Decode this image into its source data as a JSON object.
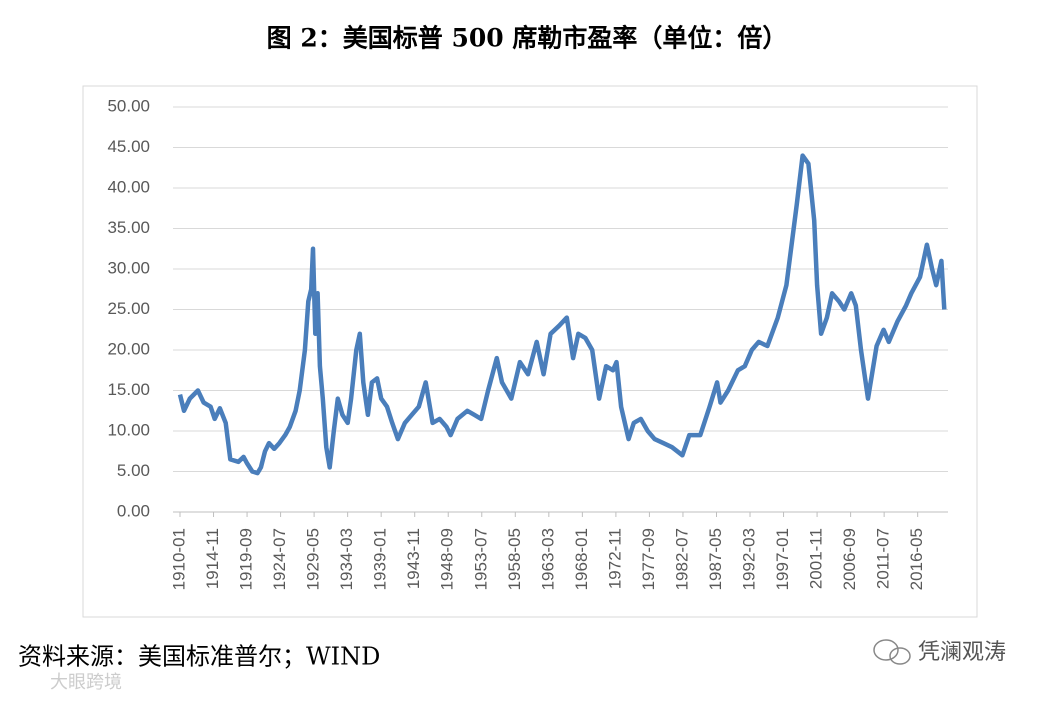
{
  "chart_data": {
    "type": "line",
    "title": "图 2：美国标普 500 席勒市盈率（单位：倍）",
    "x": [
      "1910-01",
      "1910-08",
      "1911-06",
      "1912-08",
      "1913-06",
      "1914-06",
      "1915-01",
      "1915-10",
      "1916-08",
      "1917-04",
      "1918-06",
      "1919-03",
      "1919-09",
      "1920-06",
      "1921-03",
      "1921-09",
      "1922-04",
      "1922-11",
      "1923-08",
      "1924-05",
      "1925-03",
      "1925-11",
      "1926-09",
      "1927-04",
      "1928-01",
      "1928-07",
      "1928-12",
      "1929-03",
      "1929-07",
      "1929-11",
      "1930-03",
      "1930-08",
      "1931-02",
      "1931-08",
      "1932-03",
      "1932-10",
      "1933-06",
      "1934-03",
      "1934-09",
      "1935-06",
      "1935-12",
      "1936-06",
      "1937-02",
      "1937-09",
      "1938-06",
      "1939-01",
      "1939-11",
      "1940-08",
      "1941-06",
      "1942-06",
      "1943-06",
      "1944-06",
      "1945-06",
      "1946-06",
      "1947-06",
      "1948-06",
      "1949-01",
      "1950-01",
      "1951-06",
      "1952-06",
      "1953-06",
      "1954-06",
      "1955-09",
      "1956-06",
      "1957-10",
      "1959-01",
      "1960-03",
      "1961-06",
      "1962-06",
      "1963-06",
      "1964-09",
      "1965-10",
      "1966-09",
      "1967-06",
      "1968-06",
      "1969-06",
      "1970-06",
      "1971-06",
      "1972-06",
      "1972-12",
      "1973-08",
      "1974-09",
      "1975-06",
      "1976-06",
      "1977-06",
      "1978-06",
      "1979-09",
      "1980-12",
      "1982-06",
      "1983-06",
      "1985-01",
      "1986-05",
      "1987-06",
      "1987-12",
      "1989-01",
      "1990-06",
      "1991-06",
      "1992-06",
      "1993-06",
      "1994-09",
      "1996-03",
      "1997-06",
      "1998-03",
      "1998-12",
      "1999-10",
      "2000-08",
      "2001-06",
      "2001-11",
      "2002-06",
      "2003-04",
      "2004-01",
      "2005-01",
      "2005-10",
      "2006-10",
      "2007-06",
      "2008-03",
      "2009-03",
      "2009-10",
      "2010-06",
      "2011-06",
      "2012-03",
      "2013-06",
      "2014-09",
      "2015-06",
      "2016-09",
      "2017-09",
      "2018-06",
      "2019-01",
      "2019-10",
      "2020-03"
    ],
    "values": [
      14.5,
      12.5,
      14.0,
      15.0,
      13.5,
      13.0,
      11.5,
      12.8,
      11.0,
      6.5,
      6.2,
      6.8,
      6.0,
      5.0,
      4.8,
      5.5,
      7.5,
      8.5,
      7.8,
      8.5,
      9.5,
      10.5,
      12.5,
      15.0,
      20.0,
      26.0,
      27.5,
      32.5,
      22.0,
      27.0,
      18.0,
      14.0,
      8.0,
      5.5,
      10.0,
      14.0,
      12.0,
      11.0,
      14.0,
      20.0,
      22.0,
      16.0,
      12.0,
      16.0,
      16.5,
      14.0,
      13.0,
      11.0,
      9.0,
      11.0,
      12.0,
      13.0,
      16.0,
      11.0,
      11.5,
      10.5,
      9.5,
      11.5,
      12.5,
      12.0,
      11.5,
      15.0,
      19.0,
      16.0,
      14.0,
      18.5,
      17.0,
      21.0,
      17.0,
      22.0,
      23.0,
      24.0,
      19.0,
      22.0,
      21.5,
      20.0,
      14.0,
      18.0,
      17.5,
      18.5,
      13.0,
      9.0,
      11.0,
      11.5,
      10.0,
      9.0,
      8.5,
      8.0,
      7.0,
      9.5,
      9.5,
      13.0,
      16.0,
      13.5,
      15.0,
      17.5,
      18.0,
      20.0,
      21.0,
      20.5,
      24.0,
      28.0,
      33.0,
      38.0,
      44.0,
      43.0,
      36.0,
      28.0,
      22.0,
      24.0,
      27.0,
      26.0,
      25.0,
      27.0,
      25.5,
      20.0,
      14.0,
      17.0,
      20.5,
      22.5,
      21.0,
      23.5,
      25.5,
      27.0,
      29.0,
      33.0,
      30.0,
      28.0,
      31.0,
      25.0
    ],
    "color": "#4a7ebb",
    "xlim": [
      "1910-01",
      "2020-06"
    ],
    "xticks": [
      "1910-01",
      "1914-11",
      "1919-09",
      "1924-07",
      "1929-05",
      "1934-03",
      "1939-01",
      "1943-11",
      "1948-09",
      "1953-07",
      "1958-05",
      "1963-03",
      "1968-01",
      "1972-11",
      "1977-09",
      "1982-07",
      "1987-05",
      "1992-03",
      "1997-01",
      "2001-11",
      "2006-09",
      "2011-07",
      "2016-05"
    ],
    "ylim": [
      0,
      50
    ],
    "yticks": [
      {
        "value": 0,
        "label": "0.00"
      },
      {
        "value": 5,
        "label": "5.00"
      },
      {
        "value": 10,
        "label": "10.00"
      },
      {
        "value": 15,
        "label": "15.00"
      },
      {
        "value": 20,
        "label": "20.00"
      },
      {
        "value": 25,
        "label": "25.00"
      },
      {
        "value": 30,
        "label": "30.00"
      },
      {
        "value": 35,
        "label": "35.00"
      },
      {
        "value": 40,
        "label": "40.00"
      },
      {
        "value": 45,
        "label": "45.00"
      },
      {
        "value": 50,
        "label": "50.00"
      }
    ],
    "grid": true
  },
  "source": "资料来源：美国标准普尔；WIND",
  "watermark": "凭澜观涛",
  "watermark2": "大眼跨境"
}
